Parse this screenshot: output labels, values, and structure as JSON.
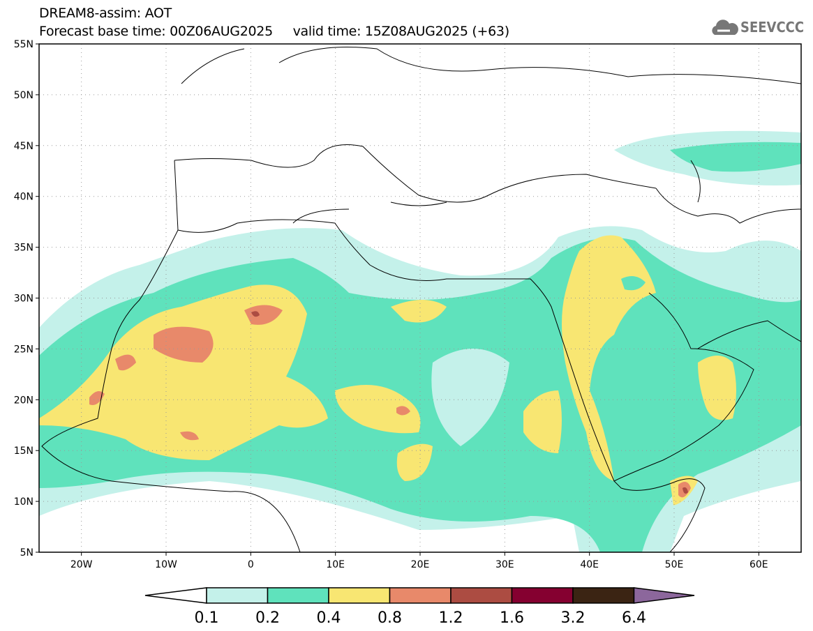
{
  "header": {
    "title": "DREAM8-assim: AOT",
    "forecast_base": "Forecast base time: 00Z06AUG2025",
    "valid_time": "valid time: 15Z08AUG2025 (+63)"
  },
  "logo": {
    "text": "SEEVCCC",
    "icon": "cloud-icon"
  },
  "map": {
    "lat_labels": [
      "55N",
      "50N",
      "45N",
      "40N",
      "35N",
      "30N",
      "25N",
      "20N",
      "15N",
      "10N",
      "5N"
    ],
    "lon_labels": [
      "20W",
      "10W",
      "0",
      "10E",
      "20E",
      "30E",
      "40E",
      "50E",
      "60E"
    ]
  },
  "colorbar": {
    "labels": [
      "0.1",
      "0.2",
      "0.4",
      "0.8",
      "1.2",
      "1.6",
      "3.2",
      "6.4"
    ],
    "colors": [
      "#ffffff",
      "#c4f1ea",
      "#5fe2bc",
      "#f8e672",
      "#e8896a",
      "#ac4c42",
      "#850030",
      "#3b2413",
      "#8c679c"
    ]
  }
}
